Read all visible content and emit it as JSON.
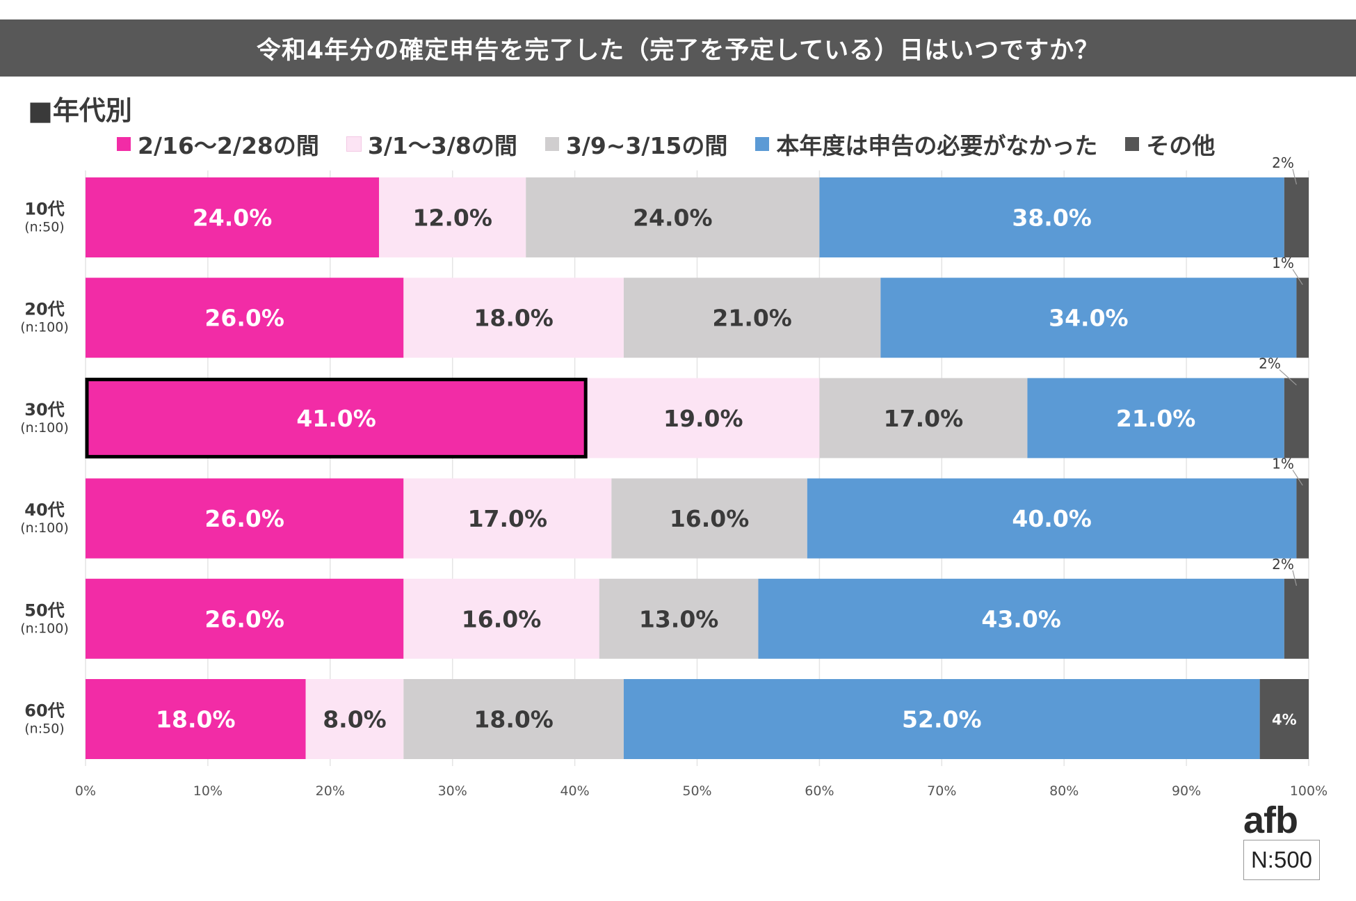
{
  "header": {
    "title": "令和4年分の確定申告を完了した（完了を予定している）日はいつですか？"
  },
  "section_label": "■年代別",
  "brand": {
    "logo_text": "afb",
    "sample_size": "N:500"
  },
  "colors": {
    "title_bg": "#585858",
    "series": [
      "#F22CA6",
      "#FCE4F4",
      "#D0CECF",
      "#5B9AD5",
      "#555555"
    ]
  },
  "chart_data": {
    "type": "bar",
    "orientation": "horizontal",
    "stacked": true,
    "title": "令和4年分の確定申告を完了した（完了を予定している）日はいつですか？",
    "categories": [
      {
        "label": "10代",
        "sublabel": "(n:50)"
      },
      {
        "label": "20代",
        "sublabel": "(n:100)"
      },
      {
        "label": "30代",
        "sublabel": "(n:100)"
      },
      {
        "label": "40代",
        "sublabel": "(n:100)"
      },
      {
        "label": "50代",
        "sublabel": "(n:100)"
      },
      {
        "label": "60代",
        "sublabel": "(n:50)"
      }
    ],
    "series": [
      {
        "name": "2/16～2/28の間",
        "color": "#F22CA6",
        "label_color": "#ffffff",
        "values": [
          24,
          26,
          41,
          26,
          26,
          18
        ],
        "labels": [
          "24.0%",
          "26.0%",
          "41.0%",
          "26.0%",
          "26.0%",
          "18.0%"
        ]
      },
      {
        "name": "3/1～3/8の間",
        "color": "#FCE4F4",
        "label_color": "#3a3a3a",
        "values": [
          12,
          18,
          19,
          17,
          16,
          8
        ],
        "labels": [
          "12.0%",
          "18.0%",
          "19.0%",
          "17.0%",
          "16.0%",
          "8.0%"
        ]
      },
      {
        "name": "3/9~3/15の間",
        "color": "#D0CECF",
        "label_color": "#3a3a3a",
        "values": [
          24,
          21,
          17,
          16,
          13,
          18
        ],
        "labels": [
          "24.0%",
          "21.0%",
          "17.0%",
          "16.0%",
          "13.0%",
          "18.0%"
        ]
      },
      {
        "name": "本年度は申告の必要がなかった",
        "color": "#5B9AD5",
        "label_color": "#ffffff",
        "values": [
          38,
          34,
          21,
          40,
          43,
          52
        ],
        "labels": [
          "38.0%",
          "34.0%",
          "21.0%",
          "40.0%",
          "43.0%",
          "52.0%"
        ]
      },
      {
        "name": "その他",
        "color": "#555555",
        "label_color": "#ffffff",
        "values": [
          2,
          1,
          2,
          1,
          2,
          4
        ],
        "labels": [
          "2%",
          "1%",
          "2%",
          "1%",
          "2%",
          "4%"
        ]
      }
    ],
    "highlight": {
      "category_index": 2,
      "series_index": 0
    },
    "x_ticks": [
      "0%",
      "10%",
      "20%",
      "30%",
      "40%",
      "50%",
      "60%",
      "70%",
      "80%",
      "90%",
      "100%"
    ],
    "xlim": [
      0,
      100
    ],
    "grid": true,
    "legend_position": "top"
  }
}
